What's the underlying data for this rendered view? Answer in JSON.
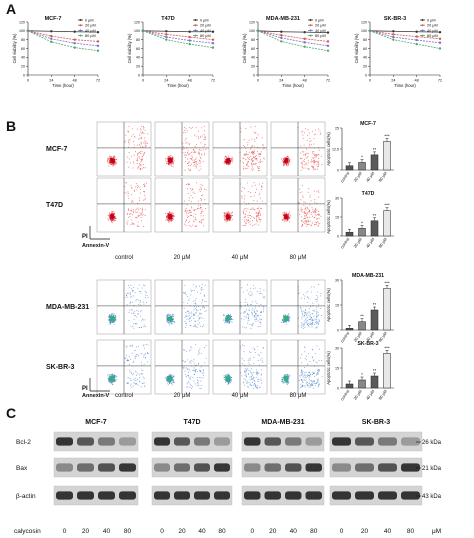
{
  "panel_labels": [
    "A",
    "B",
    "C"
  ],
  "panel_a": {
    "xlabel": "Time (hour)",
    "ylabel": "Cell viability (%)",
    "x_ticks": [
      "0",
      "24",
      "48",
      "72"
    ],
    "y_ticks": [
      "0",
      "20",
      "40",
      "60",
      "80",
      "100",
      "120"
    ],
    "legend_labels": [
      "0 μM",
      "20 μM",
      "40 μM",
      "80 μM"
    ],
    "series_colors": [
      "#333333",
      "#d9534f",
      "#7b6fd0",
      "#55a868"
    ],
    "charts": [
      {
        "title": "MCF-7"
      },
      {
        "title": "T47D"
      },
      {
        "title": "MDA-MB-231"
      },
      {
        "title": "SK-BR-3"
      }
    ]
  },
  "chart_data": [
    {
      "type": "line",
      "title": "MCF-7",
      "xlabel": "Time (hour)",
      "ylabel": "Cell viability (%)",
      "x": [
        0,
        24,
        48,
        72
      ],
      "ylim": [
        0,
        120
      ],
      "series": [
        {
          "name": "0 μM",
          "values": [
            100,
            99,
            98,
            97
          ]
        },
        {
          "name": "20 μM",
          "values": [
            100,
            88,
            80,
            76
          ]
        },
        {
          "name": "40 μM",
          "values": [
            100,
            82,
            72,
            66
          ]
        },
        {
          "name": "80 μM",
          "values": [
            100,
            75,
            62,
            55
          ]
        }
      ]
    },
    {
      "type": "line",
      "title": "T47D",
      "xlabel": "Time (hour)",
      "ylabel": "Cell viability (%)",
      "x": [
        0,
        24,
        48,
        72
      ],
      "ylim": [
        0,
        120
      ],
      "series": [
        {
          "name": "0 μM",
          "values": [
            100,
            99,
            98,
            98
          ]
        },
        {
          "name": "20 μM",
          "values": [
            100,
            92,
            86,
            80
          ]
        },
        {
          "name": "40 μM",
          "values": [
            100,
            86,
            78,
            72
          ]
        },
        {
          "name": "80 μM",
          "values": [
            100,
            80,
            70,
            62
          ]
        }
      ]
    },
    {
      "type": "line",
      "title": "MDA-MB-231",
      "xlabel": "Time (hour)",
      "ylabel": "Cell viability (%)",
      "x": [
        0,
        24,
        48,
        72
      ],
      "ylim": [
        0,
        120
      ],
      "series": [
        {
          "name": "0 μM",
          "values": [
            100,
            98,
            97,
            96
          ]
        },
        {
          "name": "20 μM",
          "values": [
            100,
            90,
            82,
            76
          ]
        },
        {
          "name": "40 μM",
          "values": [
            100,
            84,
            74,
            66
          ]
        },
        {
          "name": "80 μM",
          "values": [
            100,
            76,
            64,
            55
          ]
        }
      ]
    },
    {
      "type": "line",
      "title": "SK-BR-3",
      "xlabel": "Time (hour)",
      "ylabel": "Cell viability (%)",
      "x": [
        0,
        24,
        48,
        72
      ],
      "ylim": [
        0,
        120
      ],
      "series": [
        {
          "name": "0 μM",
          "values": [
            100,
            99,
            98,
            97
          ]
        },
        {
          "name": "20 μM",
          "values": [
            100,
            92,
            87,
            82
          ]
        },
        {
          "name": "40 μM",
          "values": [
            100,
            86,
            79,
            73
          ]
        },
        {
          "name": "80 μM",
          "values": [
            100,
            80,
            70,
            60
          ]
        }
      ]
    },
    {
      "type": "bar",
      "title": "MCF-7",
      "ylabel": "Apoptotic cells(%)",
      "categories": [
        "control",
        "20 μM",
        "40 μM",
        "80 μM"
      ],
      "values": [
        2.5,
        4.5,
        9,
        17
      ],
      "ylim": [
        0,
        25
      ],
      "significance": [
        "",
        "*",
        "**",
        "***"
      ]
    },
    {
      "type": "bar",
      "title": "T47D",
      "ylabel": "Apoptotic cells(%)",
      "categories": [
        "control",
        "20 μM",
        "40 μM",
        "80 μM"
      ],
      "values": [
        3,
        6,
        12,
        20
      ],
      "ylim": [
        0,
        30
      ],
      "significance": [
        "",
        "*",
        "**",
        "***"
      ]
    },
    {
      "type": "bar",
      "title": "MDA-MB-231",
      "ylabel": "Apoptotic cells(%)",
      "categories": [
        "control",
        "20 μM",
        "40 μM",
        "80 μM"
      ],
      "values": [
        1,
        5,
        12,
        25
      ],
      "ylim": [
        0,
        30
      ],
      "significance": [
        "",
        "**",
        "**",
        "***"
      ]
    },
    {
      "type": "bar",
      "title": "SK-BR-3",
      "ylabel": "Apoptotic cells(%)",
      "categories": [
        "control",
        "20 μM",
        "40 μM",
        "80 μM"
      ],
      "values": [
        3,
        6,
        9,
        26
      ],
      "ylim": [
        0,
        30
      ],
      "significance": [
        "",
        "*",
        "**",
        "***"
      ]
    }
  ],
  "panel_b": {
    "axis_pi": "PI",
    "axis_annexin": "Annexin-V",
    "bar_ylabel": "Apoptotic cells(%)",
    "conditions": [
      "control",
      "20 μM",
      "40 μM",
      "80 μM"
    ],
    "rows": [
      {
        "label": "MCF-7",
        "dot_color": "#e0322f"
      },
      {
        "label": "T47D",
        "dot_color": "#e0322f"
      },
      {
        "label": "MDA-MB-231",
        "dot_color": "#3f78c4"
      },
      {
        "label": "SK-BR-3",
        "dot_color": "#3f78c4"
      }
    ],
    "bar_fills": [
      "#555555",
      "#888888",
      "#5a5a5a",
      "#e8e8e8"
    ]
  },
  "panel_c": {
    "proteins": [
      "Bcl-2",
      "Bax",
      "β-actin"
    ],
    "cell_lines": [
      "MCF-7",
      "T47D",
      "MDA-MB-231",
      "SK-BR-3"
    ],
    "kda": [
      "26 kDa",
      "21 kDa",
      "43 kDa"
    ],
    "treatment_label": "calycosin",
    "doses": [
      "0",
      "20",
      "40",
      "80"
    ],
    "unit": "μM"
  }
}
